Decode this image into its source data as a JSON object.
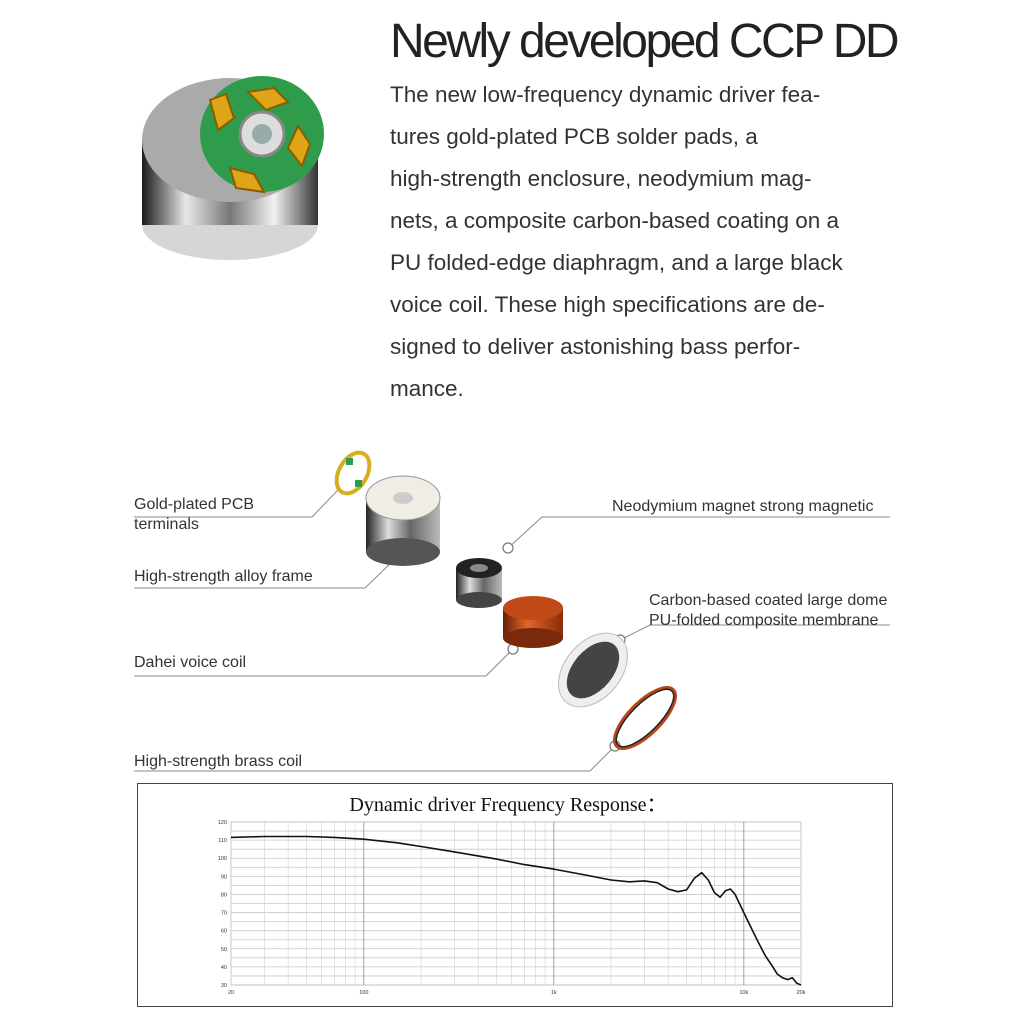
{
  "heading": "Newly developed CCP DD",
  "intro_lines": [
    "The new low-frequency dynamic driver fea-",
    "tures gold-plated PCB solder pads, a",
    "high-strength enclosure, neodymium mag-",
    "nets, a composite carbon-based coating on a",
    "PU folded-edge diaphragm, and a large black",
    "voice coil. These high specifications are de-",
    "signed to deliver astonishing bass perfor-",
    "mance."
  ],
  "callouts": {
    "pcb_line1": "Gold-plated PCB",
    "pcb_line2": "terminals",
    "frame": "High-strength alloy frame",
    "voice_coil": "Dahei voice coil",
    "brass_coil": "High-strength brass coil",
    "magnet": "Neodymium magnet strong magnetic",
    "dome_line1": "Carbon-based coated large dome",
    "dome_line2": "PU-folded composite membrane"
  },
  "colors": {
    "pcb_green": "#2e9c4a",
    "gold": "#e0a418",
    "copper": "#b8461a",
    "steel": "#8a8a8a"
  },
  "chart_data": {
    "type": "line",
    "title": "Dynamic driver Frequency Response：",
    "xscale": "log",
    "xlim": [
      20,
      20000
    ],
    "ylim": [
      30,
      120
    ],
    "x_ticks": [
      20,
      100,
      1000,
      10000,
      20000
    ],
    "x_tick_labels": [
      "20",
      "100",
      "1k",
      "10k",
      "20k"
    ],
    "y_ticks": [
      30,
      40,
      50,
      60,
      70,
      80,
      90,
      100,
      110,
      120
    ],
    "y_tick_labels": [
      "30",
      "40",
      "50",
      "60",
      "70",
      "80",
      "90",
      "100",
      "110",
      "120"
    ],
    "grid": true,
    "series": [
      {
        "x": [
          20,
          30,
          50,
          70,
          100,
          150,
          200,
          300,
          500,
          700,
          1000,
          1500,
          2000,
          2500,
          3000,
          3500,
          4000,
          4500,
          5000,
          5500,
          6000,
          6500,
          7000,
          7500,
          8000,
          8500,
          9000,
          10000,
          11000,
          12000,
          13000,
          14000,
          15000,
          16000,
          17000,
          18000,
          19000,
          20000
        ],
        "y": [
          111.5,
          112,
          112,
          111.5,
          110.5,
          108.5,
          106.5,
          103.5,
          99.5,
          96.5,
          94,
          90.5,
          88,
          87,
          87.5,
          86.5,
          83,
          81.5,
          82.5,
          89,
          92,
          88,
          81,
          78.5,
          82,
          83,
          80,
          70,
          61,
          53,
          46,
          41,
          36,
          34,
          33,
          34,
          31,
          30
        ]
      }
    ]
  }
}
